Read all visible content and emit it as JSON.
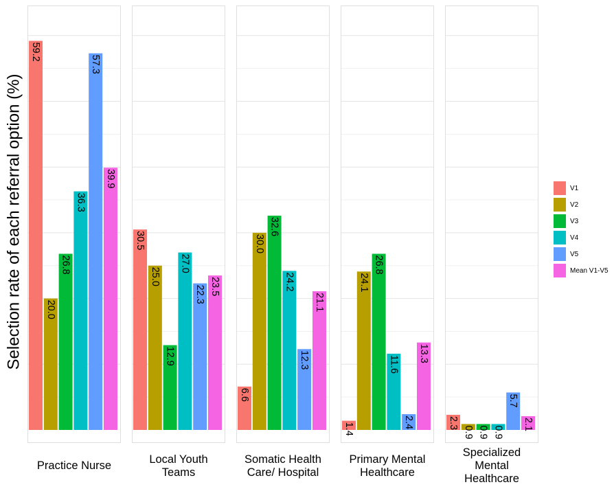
{
  "chart_data": {
    "type": "bar",
    "ylabel": "Selection rate of each referral option (%)",
    "xlabel": "",
    "ylim": [
      0,
      65
    ],
    "grid": true,
    "legend_position": "right",
    "facets": [
      {
        "label": "Practice Nurse",
        "values": [
          59.2,
          20.0,
          26.8,
          36.3,
          57.3,
          39.9
        ]
      },
      {
        "label": "Local Youth Teams",
        "values": [
          30.5,
          25.0,
          12.9,
          27.0,
          22.3,
          23.5
        ]
      },
      {
        "label": "Somatic Health Care/ Hospital",
        "values": [
          6.6,
          30.0,
          32.6,
          24.2,
          12.3,
          21.1
        ]
      },
      {
        "label": "Primary Mental Healthcare",
        "values": [
          1.4,
          24.1,
          26.8,
          11.6,
          2.4,
          13.3
        ]
      },
      {
        "label": "Specialized Mental Healthcare",
        "values": [
          2.3,
          0.9,
          0.9,
          0.9,
          5.7,
          2.1
        ]
      }
    ],
    "series": [
      {
        "name": "V1",
        "color": "#F8766D"
      },
      {
        "name": "V2",
        "color": "#B79F00"
      },
      {
        "name": "V3",
        "color": "#00BA38"
      },
      {
        "name": "V4",
        "color": "#00BFC4"
      },
      {
        "name": "V5",
        "color": "#619CFF"
      },
      {
        "name": "Mean V1-V5",
        "color": "#F564E3"
      }
    ]
  }
}
